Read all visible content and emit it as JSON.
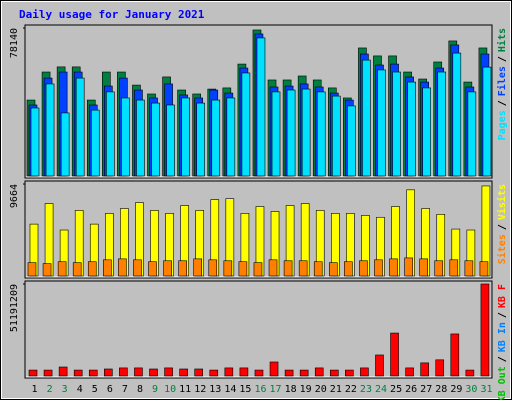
{
  "chart_data": [
    {
      "type": "bar",
      "title": "Daily usage for January 2021",
      "title_color": "#0000ff",
      "ylim": [
        0,
        78140
      ],
      "yticks": [
        78140
      ],
      "legend_separator": "/",
      "series": [
        {
          "name": "Hits",
          "color": "#008040",
          "values": [
            40100,
            54900,
            57600,
            57600,
            40100,
            54900,
            54900,
            48000,
            43300,
            52300,
            45400,
            43300,
            45900,
            46500,
            59100,
            77100,
            50700,
            50700,
            52800,
            50700,
            46500,
            41200,
            67600,
            63400,
            63400,
            54900,
            51200,
            60200,
            71300,
            49600,
            67600
          ]
        },
        {
          "name": "Files",
          "color": "#0040ff",
          "values": [
            37500,
            51700,
            54900,
            54900,
            37500,
            47500,
            51700,
            45400,
            41200,
            48600,
            42800,
            41200,
            45400,
            43800,
            57000,
            75000,
            47000,
            47500,
            48600,
            47000,
            43800,
            40100,
            64400,
            58600,
            59100,
            52300,
            49600,
            57000,
            69200,
            47000,
            64400
          ]
        },
        {
          "name": "Pages",
          "color": "#00e0ff",
          "values": [
            35900,
            48600,
            33300,
            51700,
            34800,
            44400,
            41200,
            40100,
            38500,
            37500,
            41200,
            38500,
            40100,
            41200,
            54400,
            72900,
            44400,
            45400,
            45900,
            44400,
            42200,
            37000,
            61200,
            56000,
            54900,
            49600,
            46500,
            54900,
            64900,
            44400,
            57500
          ]
        }
      ]
    },
    {
      "type": "bar",
      "ylim": [
        0,
        9664
      ],
      "yticks": [
        9664
      ],
      "legend_separator": "/",
      "series": [
        {
          "name": "Visits",
          "color": "#ffff00",
          "values": [
            5450,
            7610,
            4830,
            6890,
            5450,
            6580,
            7090,
            7710,
            6890,
            6580,
            7400,
            6890,
            8020,
            8120,
            6580,
            7300,
            6780,
            7400,
            7610,
            6890,
            6580,
            6580,
            6370,
            6170,
            7300,
            9050,
            7090,
            6480,
            4930,
            4830,
            9460
          ]
        },
        {
          "name": "Sites",
          "color": "#ff8000",
          "values": [
            1400,
            1300,
            1500,
            1400,
            1500,
            1700,
            1800,
            1700,
            1500,
            1600,
            1600,
            1800,
            1700,
            1600,
            1500,
            1400,
            1700,
            1600,
            1600,
            1500,
            1400,
            1500,
            1600,
            1700,
            1800,
            1900,
            1800,
            1600,
            1700,
            1600,
            1500
          ]
        }
      ]
    },
    {
      "type": "bar",
      "ylim": [
        0,
        51191209
      ],
      "yticks": [
        51191209
      ],
      "legend_separator": "/",
      "categories": [
        "1",
        "2",
        "3",
        "4",
        "5",
        "6",
        "7",
        "8",
        "9",
        "10",
        "11",
        "12",
        "13",
        "14",
        "15",
        "16",
        "17",
        "18",
        "19",
        "20",
        "21",
        "22",
        "23",
        "24",
        "25",
        "26",
        "27",
        "28",
        "29",
        "30",
        "31"
      ],
      "category_colors": [
        "#000000",
        "#008040",
        "#008040",
        "#000000",
        "#000000",
        "#000000",
        "#000000",
        "#000000",
        "#008040",
        "#008040",
        "#000000",
        "#000000",
        "#000000",
        "#000000",
        "#000000",
        "#008040",
        "#008040",
        "#000000",
        "#000000",
        "#000000",
        "#000000",
        "#000000",
        "#008040",
        "#008040",
        "#000000",
        "#000000",
        "#000000",
        "#000000",
        "#000000",
        "#008040",
        "#008040"
      ],
      "series": [
        {
          "name": "KB F",
          "color": "#ff0000",
          "values": [
            3300000,
            3300000,
            5000000,
            3300000,
            3300000,
            3900000,
            4500000,
            4500000,
            3900000,
            4500000,
            3900000,
            3900000,
            3300000,
            4500000,
            4500000,
            3300000,
            7800000,
            3300000,
            3300000,
            4500000,
            3300000,
            3300000,
            4500000,
            11700000,
            23900000,
            4500000,
            7300000,
            9000000,
            23400000,
            3300000,
            51191209
          ]
        },
        {
          "name": "KB In",
          "color": "#0080ff",
          "values": [
            null,
            null,
            null,
            null,
            null,
            null,
            null,
            null,
            null,
            null,
            null,
            null,
            null,
            null,
            null,
            null,
            null,
            null,
            null,
            null,
            null,
            null,
            null,
            null,
            null,
            null,
            null,
            null,
            null,
            null,
            null
          ]
        },
        {
          "name": "KB Out",
          "color": "#00c000",
          "values": [
            null,
            null,
            null,
            null,
            null,
            null,
            null,
            null,
            null,
            null,
            null,
            null,
            null,
            null,
            null,
            null,
            null,
            null,
            null,
            null,
            null,
            null,
            null,
            null,
            null,
            null,
            null,
            null,
            null,
            null,
            null
          ]
        }
      ]
    }
  ]
}
